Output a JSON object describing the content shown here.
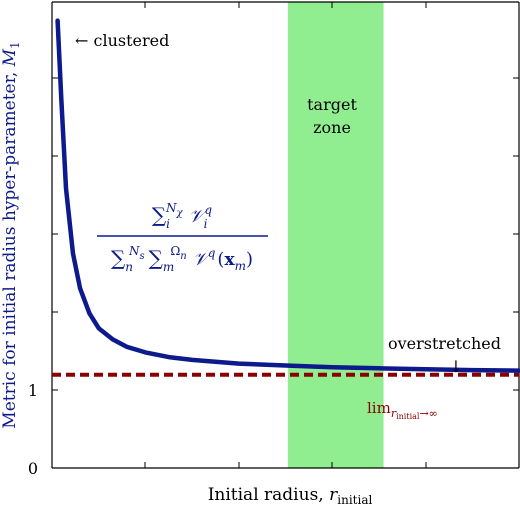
{
  "chart_data": {
    "type": "line",
    "title": "",
    "xlabel": "Initial radius, r_initial",
    "ylabel": "Metric for initial radius hyper-parameter, M_1",
    "xlabel_text": "Initial radius, ",
    "xlabel_symbol": "r",
    "xlabel_sub": "initial",
    "ylabel_text": "Metric for initial radius hyper-parameter, ",
    "ylabel_symbol": "M",
    "ylabel_sub": "1",
    "xlim": [
      0,
      10
    ],
    "ylim": [
      0,
      5
    ],
    "yticks": [
      0,
      1
    ],
    "ytick_labels": [
      "0",
      "1"
    ],
    "x_tick_labels_shown": false,
    "grid": false,
    "series": [
      {
        "color": "#0d1a8c",
        "x": [
          0.12,
          0.2,
          0.3,
          0.45,
          0.6,
          0.8,
          1.0,
          1.3,
          1.6,
          2.0,
          2.5,
          3.0,
          3.5,
          4.0,
          5.0,
          6.0,
          7.0,
          8.0,
          9.0,
          10.0
        ],
        "y": [
          4.8,
          3.96,
          3.0,
          2.3,
          1.93,
          1.66,
          1.5,
          1.38,
          1.3,
          1.24,
          1.19,
          1.16,
          1.14,
          1.12,
          1.1,
          1.08,
          1.07,
          1.06,
          1.05,
          1.045
        ]
      }
    ],
    "reference_line": {
      "y": 1,
      "color": "#8b0000",
      "style": "dashed"
    },
    "target_zone": {
      "x_start": 5.05,
      "x_end": 7.1,
      "color": "#90ee90",
      "label_line1": "target",
      "label_line2": "zone"
    },
    "annotations": {
      "clustered": "← clustered",
      "overstretched": "overstretched",
      "overstretched_arrow": "↓",
      "limit_prefix": "lim",
      "limit_sub": "r",
      "limit_subsub": "initial",
      "limit_suffix": "→∞"
    },
    "formula": {
      "num_sum": "∑",
      "num_sub": "i",
      "num_sup": "N",
      "num_sup_sub": "χ",
      "num_term": "𝒱",
      "num_term_sub": "i",
      "num_term_sup": "q",
      "den_sum1": "∑",
      "den_sum1_sub": "n",
      "den_sum1_sup": "N",
      "den_sum1_sup_sub": "s",
      "den_sum2": "∑",
      "den_sum2_sub": "m",
      "den_sum2_sup": "Ω",
      "den_sum2_sup_sub": "n",
      "den_term": "𝒱",
      "den_term_sup": "q",
      "den_arg_open": "(",
      "den_arg": "x",
      "den_arg_sub": "m",
      "den_arg_close": ")"
    },
    "colors": {
      "curve": "#0d1a8c",
      "formula": "#0d1a8c",
      "ylabel": "#0d1a8c",
      "reference": "#8b0000",
      "zone": "#90ee90"
    }
  }
}
